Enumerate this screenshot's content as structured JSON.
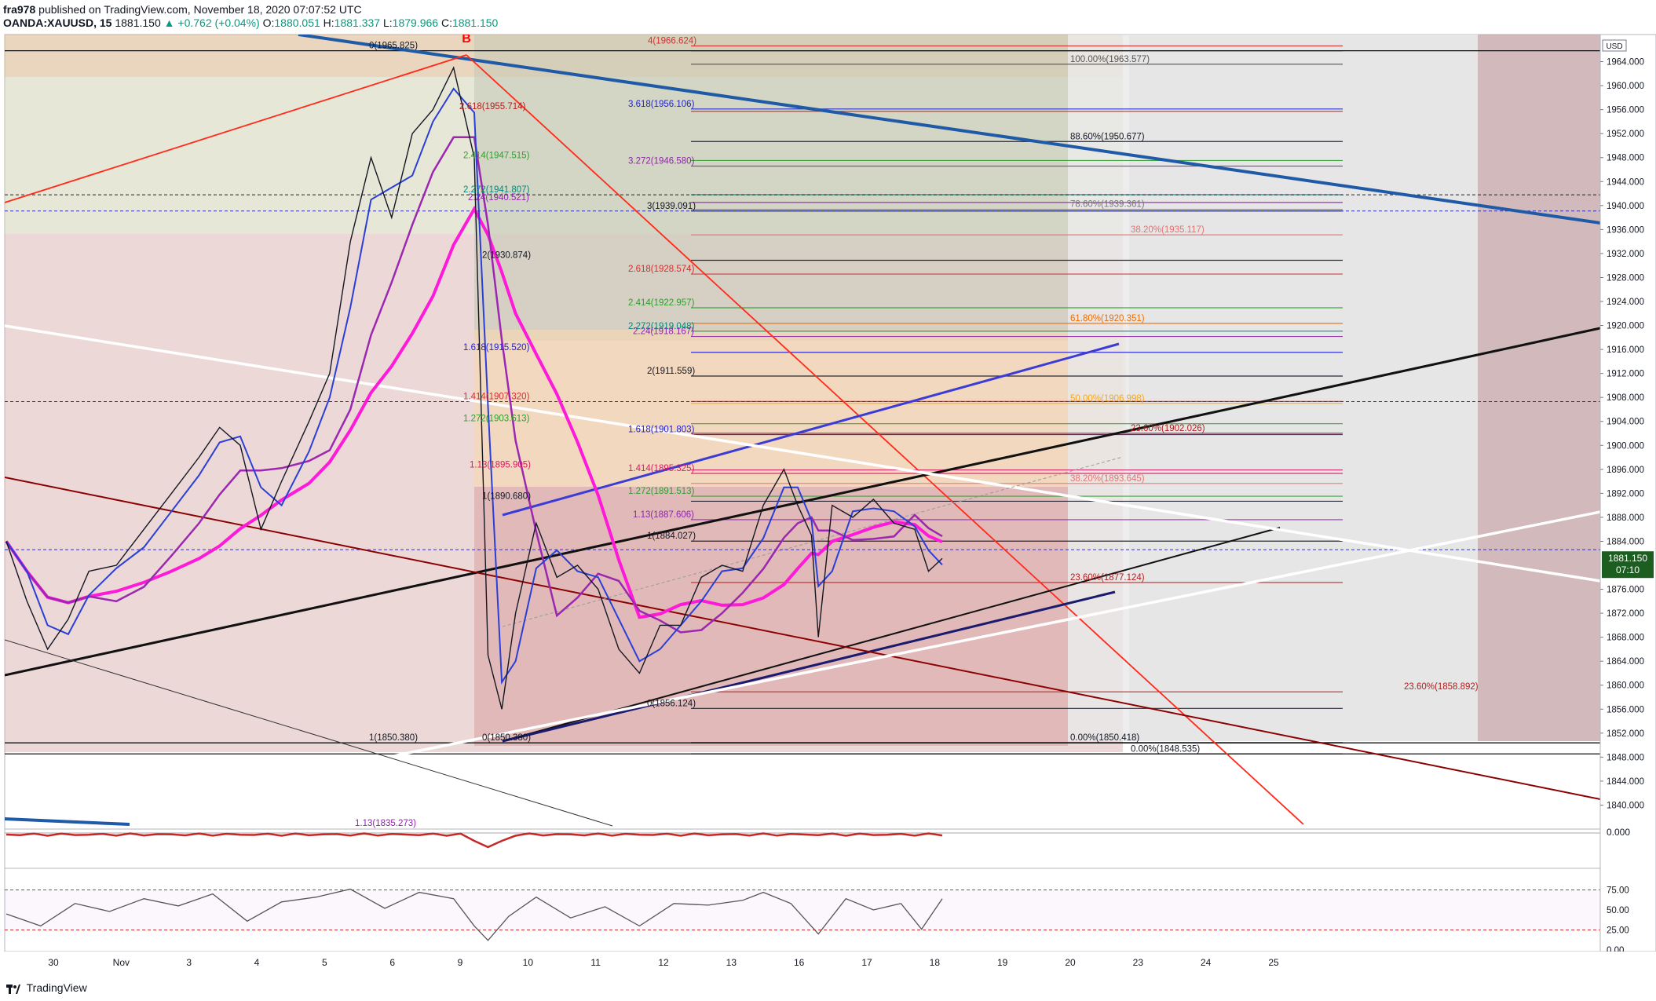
{
  "header": {
    "author": "fra978",
    "published_text": "published on TradingView.com, November 18, 2020 07:07:52 UTC",
    "symbol": "OANDA:XAUUSD, 15",
    "last": "1881.150",
    "change": "+0.762 (+0.04%)",
    "open_label": "O:",
    "open": "1880.051",
    "high_label": "H:",
    "high": "1881.337",
    "low_label": "L:",
    "low": "1879.966",
    "close_label": "C:",
    "close": "1881.150"
  },
  "footer": {
    "brand": "TradingView"
  },
  "price_scale": {
    "currency": "USD",
    "last_price": "1881.150",
    "countdown": "07:10",
    "ticks": [
      "1964.000",
      "1960.000",
      "1956.000",
      "1952.000",
      "1948.000",
      "1944.000",
      "1940.000",
      "1936.000",
      "1932.000",
      "1928.000",
      "1924.000",
      "1920.000",
      "1916.000",
      "1912.000",
      "1908.000",
      "1904.000",
      "1900.000",
      "1896.000",
      "1892.000",
      "1888.000",
      "1884.000",
      "1876.000",
      "1872.000",
      "1868.000",
      "1864.000",
      "1860.000",
      "1856.000",
      "1852.000",
      "1848.000",
      "1844.000",
      "1840.000"
    ],
    "osc_tick": "0.000",
    "rsi_ticks": [
      "75.00",
      "50.00",
      "25.00",
      "0.00"
    ]
  },
  "time_axis": [
    "30",
    "Nov",
    "3",
    "4",
    "5",
    "6",
    "9",
    "10",
    "11",
    "12",
    "13",
    "16",
    "17",
    "18",
    "19",
    "20",
    "23",
    "24",
    "25"
  ],
  "chart_data": {
    "type": "line",
    "title": "",
    "point_label": "B",
    "price_axis": {
      "ylim": [
        1836,
        1968
      ]
    },
    "rsi_axis": {
      "ylim": [
        0,
        100
      ],
      "levels": [
        75,
        25
      ]
    },
    "fib_labels": [
      {
        "text": "0(1965.825)",
        "price": 1965.825,
        "color": "#131722"
      },
      {
        "text": "4(1966.624)",
        "price": 1966.624,
        "color": "#d32f2f"
      },
      {
        "text": "100.00%(1963.577)",
        "price": 1963.577,
        "color": "#555555"
      },
      {
        "text": "3.618(1956.106)",
        "price": 1956.106,
        "color": "#1e1ecc"
      },
      {
        "text": "2.618(1955.714)",
        "price": 1955.714,
        "color": "#b71c1c"
      },
      {
        "text": "88.60%(1950.677)",
        "price": 1950.677,
        "color": "#131722"
      },
      {
        "text": "2.414(1947.515)",
        "price": 1947.515,
        "color": "#2e9e2e"
      },
      {
        "text": "3.272(1946.580)",
        "price": 1946.58,
        "color": "#8e24aa"
      },
      {
        "text": "2.272(1941.807)",
        "price": 1941.807,
        "color": "#00897b"
      },
      {
        "text": "2.24(1940.521)",
        "price": 1940.521,
        "color": "#8e24aa"
      },
      {
        "text": "3(1939.091)",
        "price": 1939.091,
        "color": "#131722"
      },
      {
        "text": "78.60%(1939.361)",
        "price": 1939.361,
        "color": "#777777"
      },
      {
        "text": "38.20%(1935.117)",
        "price": 1935.117,
        "color": "#e57373"
      },
      {
        "text": "2(1930.874)",
        "price": 1930.874,
        "color": "#131722"
      },
      {
        "text": "2.618(1928.574)",
        "price": 1928.574,
        "color": "#d32f2f"
      },
      {
        "text": "2.414(1922.957)",
        "price": 1922.957,
        "color": "#2e9e2e"
      },
      {
        "text": "61.80%(1920.351)",
        "price": 1920.351,
        "color": "#ef6c00"
      },
      {
        "text": "2.272(1919.048)",
        "price": 1919.048,
        "color": "#00897b"
      },
      {
        "text": "2.24(1918.167)",
        "price": 1918.167,
        "color": "#8e24aa"
      },
      {
        "text": "1.618(1915.520)",
        "price": 1915.52,
        "color": "#1e1ecc"
      },
      {
        "text": "2(1911.559)",
        "price": 1911.559,
        "color": "#131722"
      },
      {
        "text": "1.414(1907.320)",
        "price": 1907.32,
        "color": "#d32f2f"
      },
      {
        "text": "50.00%(1906.998)",
        "price": 1906.998,
        "color": "#f5a623"
      },
      {
        "text": "1.272(1903.613)",
        "price": 1903.613,
        "color": "#2e9e2e"
      },
      {
        "text": "23.60%(1902.026)",
        "price": 1902.026,
        "color": "#b71c1c"
      },
      {
        "text": "1.618(1901.803)",
        "price": 1901.803,
        "color": "#1e1ecc"
      },
      {
        "text": "1.13(1895.905)",
        "price": 1895.905,
        "color": "#d81b60"
      },
      {
        "text": "1.414(1895.325)",
        "price": 1895.325,
        "color": "#d81b60"
      },
      {
        "text": "38.20%(1893.645)",
        "price": 1893.645,
        "color": "#e57373"
      },
      {
        "text": "1.272(1891.513)",
        "price": 1891.513,
        "color": "#2e9e2e"
      },
      {
        "text": "1(1890.680)",
        "price": 1890.68,
        "color": "#131722"
      },
      {
        "text": "1.13(1887.606)",
        "price": 1887.606,
        "color": "#8e24aa"
      },
      {
        "text": "1(1884.027)",
        "price": 1884.027,
        "color": "#131722"
      },
      {
        "text": "23.60%(1877.124)",
        "price": 1877.124,
        "color": "#b71c1c"
      },
      {
        "text": "23.60%(1858.892)",
        "price": 1858.892,
        "color": "#b71c1c"
      },
      {
        "text": "0(1856.124)",
        "price": 1856.124,
        "color": "#131722"
      },
      {
        "text": "1(1850.380)",
        "price": 1850.38,
        "color": "#131722"
      },
      {
        "text": "0(1850.380)",
        "price": 1850.38,
        "color": "#131722"
      },
      {
        "text": "0.00%(1850.418)",
        "price": 1850.418,
        "color": "#131722"
      },
      {
        "text": "0.00%(1848.535)",
        "price": 1848.535,
        "color": "#131722"
      },
      {
        "text": "1.13(1835.273)",
        "price": 1835.273,
        "color": "#8e24aa"
      }
    ],
    "price_series": [
      {
        "t": 0,
        "p": 1884
      },
      {
        "t": 3,
        "p": 1874
      },
      {
        "t": 6,
        "p": 1866
      },
      {
        "t": 9,
        "p": 1871
      },
      {
        "t": 12,
        "p": 1879
      },
      {
        "t": 16,
        "p": 1880
      },
      {
        "t": 20,
        "p": 1886
      },
      {
        "t": 24,
        "p": 1892
      },
      {
        "t": 28,
        "p": 1898
      },
      {
        "t": 31,
        "p": 1903
      },
      {
        "t": 34,
        "p": 1900
      },
      {
        "t": 37,
        "p": 1886
      },
      {
        "t": 40,
        "p": 1894
      },
      {
        "t": 44,
        "p": 1904
      },
      {
        "t": 47,
        "p": 1912
      },
      {
        "t": 50,
        "p": 1934
      },
      {
        "t": 53,
        "p": 1948
      },
      {
        "t": 56,
        "p": 1938
      },
      {
        "t": 59,
        "p": 1952
      },
      {
        "t": 62,
        "p": 1956
      },
      {
        "t": 65,
        "p": 1963
      },
      {
        "t": 68,
        "p": 1948
      },
      {
        "t": 70,
        "p": 1865
      },
      {
        "t": 72,
        "p": 1856
      },
      {
        "t": 74,
        "p": 1872
      },
      {
        "t": 77,
        "p": 1887
      },
      {
        "t": 80,
        "p": 1878
      },
      {
        "t": 83,
        "p": 1880
      },
      {
        "t": 86,
        "p": 1876
      },
      {
        "t": 89,
        "p": 1866
      },
      {
        "t": 92,
        "p": 1862
      },
      {
        "t": 95,
        "p": 1870
      },
      {
        "t": 98,
        "p": 1870
      },
      {
        "t": 101,
        "p": 1878
      },
      {
        "t": 104,
        "p": 1880
      },
      {
        "t": 107,
        "p": 1879
      },
      {
        "t": 110,
        "p": 1890
      },
      {
        "t": 113,
        "p": 1896
      },
      {
        "t": 115,
        "p": 1890
      },
      {
        "t": 117,
        "p": 1885
      },
      {
        "t": 118,
        "p": 1868
      },
      {
        "t": 120,
        "p": 1890
      },
      {
        "t": 123,
        "p": 1888
      },
      {
        "t": 126,
        "p": 1891
      },
      {
        "t": 129,
        "p": 1887
      },
      {
        "t": 132,
        "p": 1886
      },
      {
        "t": 134,
        "p": 1879
      },
      {
        "t": 136,
        "p": 1881.15
      }
    ],
    "rsi_series": [
      {
        "t": 0,
        "v": 45
      },
      {
        "t": 5,
        "v": 30
      },
      {
        "t": 10,
        "v": 58
      },
      {
        "t": 15,
        "v": 48
      },
      {
        "t": 20,
        "v": 64
      },
      {
        "t": 25,
        "v": 55
      },
      {
        "t": 30,
        "v": 70
      },
      {
        "t": 35,
        "v": 36
      },
      {
        "t": 40,
        "v": 60
      },
      {
        "t": 45,
        "v": 66
      },
      {
        "t": 50,
        "v": 76
      },
      {
        "t": 55,
        "v": 52
      },
      {
        "t": 60,
        "v": 72
      },
      {
        "t": 65,
        "v": 64
      },
      {
        "t": 68,
        "v": 30
      },
      {
        "t": 70,
        "v": 12
      },
      {
        "t": 73,
        "v": 42
      },
      {
        "t": 77,
        "v": 66
      },
      {
        "t": 82,
        "v": 40
      },
      {
        "t": 87,
        "v": 54
      },
      {
        "t": 92,
        "v": 30
      },
      {
        "t": 97,
        "v": 58
      },
      {
        "t": 102,
        "v": 56
      },
      {
        "t": 107,
        "v": 62
      },
      {
        "t": 110,
        "v": 72
      },
      {
        "t": 114,
        "v": 58
      },
      {
        "t": 118,
        "v": 20
      },
      {
        "t": 122,
        "v": 64
      },
      {
        "t": 126,
        "v": 50
      },
      {
        "t": 130,
        "v": 58
      },
      {
        "t": 133,
        "v": 26
      },
      {
        "t": 136,
        "v": 64
      }
    ],
    "colors": {
      "price": "#131722",
      "ma_fast": "#2a3fd6",
      "ma_mid": "#9c27b0",
      "ma_slow": "#ff19d9",
      "trend_blue": "#1f5aa6",
      "trend_red": "#ff2a1a",
      "channel_black": "#111111",
      "channel_dark_red": "#8b0000",
      "white_line": "#ffffff",
      "accent": "#ff0000"
    }
  }
}
